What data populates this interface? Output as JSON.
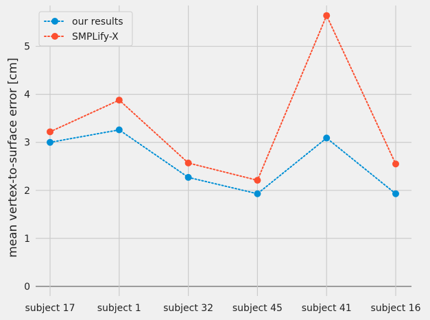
{
  "chart_data": {
    "type": "line",
    "categories": [
      "subject 17",
      "subject 1",
      "subject 32",
      "subject 45",
      "subject 41",
      "subject 16"
    ],
    "series": [
      {
        "name": "our results",
        "color": "#008fd5",
        "values": [
          3.0,
          3.26,
          2.27,
          1.93,
          3.09,
          1.93
        ]
      },
      {
        "name": "SMPLify-X",
        "color": "#fc4f30",
        "values": [
          3.22,
          3.88,
          2.57,
          2.21,
          5.64,
          2.55
        ]
      }
    ],
    "ylabel": "mean vertex-to-surface error [cm]",
    "xlabel": "",
    "ylim": [
      -0.2,
      5.85
    ],
    "yticks": [
      0,
      1,
      2,
      3,
      4,
      5
    ],
    "grid": true,
    "line_style": "dotted",
    "legend_position": "upper-left"
  }
}
